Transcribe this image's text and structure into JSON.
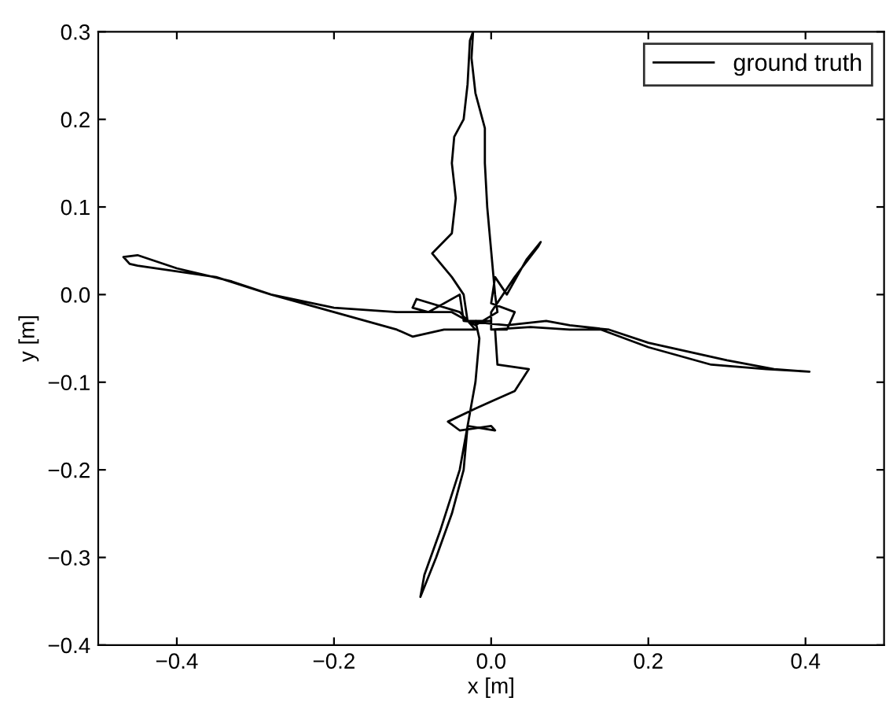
{
  "chart_data": {
    "type": "line",
    "xlabel": "x [m]",
    "ylabel": "y [m]",
    "xlim": [
      -0.5,
      0.5
    ],
    "xticks": [
      {
        "value": -0.4,
        "label": "−0.4"
      },
      {
        "value": -0.2,
        "label": "−0.2"
      },
      {
        "value": 0.0,
        "label": "0.0"
      },
      {
        "value": 0.2,
        "label": "0.2"
      },
      {
        "value": 0.4,
        "label": "0.4"
      }
    ],
    "ylim": [
      -0.4,
      0.3
    ],
    "yticks": [
      {
        "value": -0.4,
        "label": "−0.4"
      },
      {
        "value": -0.3,
        "label": "−0.3"
      },
      {
        "value": -0.2,
        "label": "−0.2"
      },
      {
        "value": -0.1,
        "label": "−0.1"
      },
      {
        "value": 0.0,
        "label": "0.0"
      },
      {
        "value": 0.1,
        "label": "0.1"
      },
      {
        "value": 0.2,
        "label": "0.2"
      },
      {
        "value": 0.3,
        "label": "0.3"
      }
    ],
    "grid": false,
    "legend": "top right",
    "marker": "none",
    "line_style": "solid",
    "series": [
      {
        "name": "ground truth",
        "color": "#000000",
        "x": [
          0.0,
          -0.03,
          -0.035,
          -0.05,
          -0.075,
          -0.05,
          -0.045,
          -0.05,
          -0.047,
          -0.035,
          -0.03,
          -0.027,
          -0.023,
          -0.025,
          -0.02,
          -0.008,
          -0.008,
          -0.005,
          0.0,
          0.005,
          0.008,
          -0.02,
          -0.05,
          -0.12,
          -0.2,
          -0.28,
          -0.33,
          -0.4,
          -0.45,
          -0.468,
          -0.46,
          -0.45,
          -0.35,
          -0.28,
          -0.2,
          -0.12,
          -0.1,
          -0.06,
          -0.02,
          -0.04,
          -0.095,
          -0.1,
          -0.08,
          -0.04,
          -0.035,
          0.02,
          0.07,
          0.1,
          0.15,
          0.2,
          0.3,
          0.36,
          0.405,
          0.35,
          0.28,
          0.2,
          0.14,
          0.1,
          0.05,
          0.0,
          0.0,
          0.03,
          0.06,
          0.063,
          0.045,
          0.02,
          0.005,
          0.0,
          0.03,
          0.02,
          0.005,
          0.008,
          0.048,
          0.03,
          -0.02,
          -0.055,
          -0.04,
          0.0,
          0.005,
          -0.03,
          -0.035,
          -0.05,
          -0.07,
          -0.09,
          -0.085,
          -0.065,
          -0.04,
          -0.03,
          -0.02,
          -0.015,
          -0.02
        ],
        "values": [
          -0.03,
          -0.03,
          0.0,
          0.02,
          0.047,
          0.07,
          0.11,
          0.15,
          0.18,
          0.2,
          0.24,
          0.29,
          0.3,
          0.27,
          0.23,
          0.19,
          0.15,
          0.1,
          0.05,
          0.0,
          -0.02,
          -0.035,
          -0.02,
          -0.02,
          -0.015,
          0.0,
          0.015,
          0.03,
          0.045,
          0.043,
          0.035,
          0.033,
          0.02,
          0.0,
          -0.02,
          -0.04,
          -0.048,
          -0.04,
          -0.04,
          -0.02,
          -0.005,
          -0.015,
          -0.02,
          0.0,
          -0.03,
          -0.035,
          -0.03,
          -0.035,
          -0.04,
          -0.055,
          -0.075,
          -0.085,
          -0.088,
          -0.085,
          -0.08,
          -0.06,
          -0.04,
          -0.04,
          -0.037,
          -0.04,
          -0.02,
          0.02,
          0.055,
          0.06,
          0.04,
          0.0,
          0.02,
          -0.01,
          -0.02,
          -0.04,
          -0.04,
          -0.08,
          -0.085,
          -0.11,
          -0.13,
          -0.145,
          -0.155,
          -0.15,
          -0.155,
          -0.15,
          -0.2,
          -0.25,
          -0.3,
          -0.345,
          -0.32,
          -0.27,
          -0.2,
          -0.15,
          -0.1,
          -0.05,
          -0.03
        ]
      }
    ]
  }
}
